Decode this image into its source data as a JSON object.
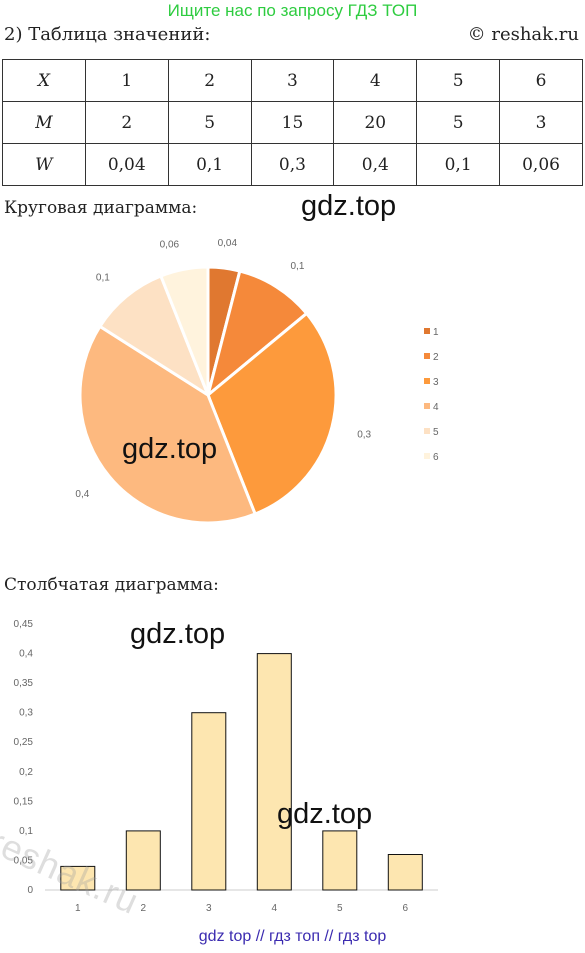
{
  "banner": "Ищите нас по запросу ГДЗ ТОП",
  "heading": "2) Таблица значений:",
  "copyright": "© reshak.ru",
  "table": {
    "rows": [
      {
        "label": "X",
        "cells": [
          "1",
          "2",
          "3",
          "4",
          "5",
          "6"
        ]
      },
      {
        "label": "M",
        "cells": [
          "2",
          "5",
          "15",
          "20",
          "5",
          "3"
        ]
      },
      {
        "label": "W",
        "cells": [
          "0,04",
          "0,1",
          "0,3",
          "0,4",
          "0,1",
          "0,06"
        ]
      }
    ]
  },
  "pie_section_label": "Круговая диаграмма:",
  "bar_section_label": "Столбчатая диаграмма:",
  "watermarks": [
    "gdz.top",
    "gdz.top",
    "gdz.top",
    "gdz.top"
  ],
  "reshak_watermark": "reshak.ru",
  "footer": "gdz top  //  гдз топ  //  гдз top",
  "chart_data": [
    {
      "type": "pie",
      "categories": [
        "1",
        "2",
        "3",
        "4",
        "5",
        "6"
      ],
      "values": [
        0.04,
        0.1,
        0.3,
        0.4,
        0.1,
        0.06
      ],
      "data_labels": [
        "0,04",
        "0,1",
        "0,3",
        "0,4",
        "0,1",
        "0,06"
      ],
      "colors": [
        "#e07830",
        "#f5893a",
        "#fd9a3c",
        "#fdb97f",
        "#fde1c4",
        "#fff3dd"
      ],
      "legend": "right"
    },
    {
      "type": "bar",
      "categories": [
        "1",
        "2",
        "3",
        "4",
        "5",
        "6"
      ],
      "values": [
        0.04,
        0.1,
        0.3,
        0.4,
        0.1,
        0.06
      ],
      "ylim": [
        0,
        0.45
      ],
      "y_ticks": [
        "0",
        "0,05",
        "0,1",
        "0,15",
        "0,2",
        "0,25",
        "0,3",
        "0,35",
        "0,4",
        "0,45"
      ],
      "bar_fill": "#fde6b0",
      "bar_stroke": "#111111",
      "grid": false
    }
  ]
}
